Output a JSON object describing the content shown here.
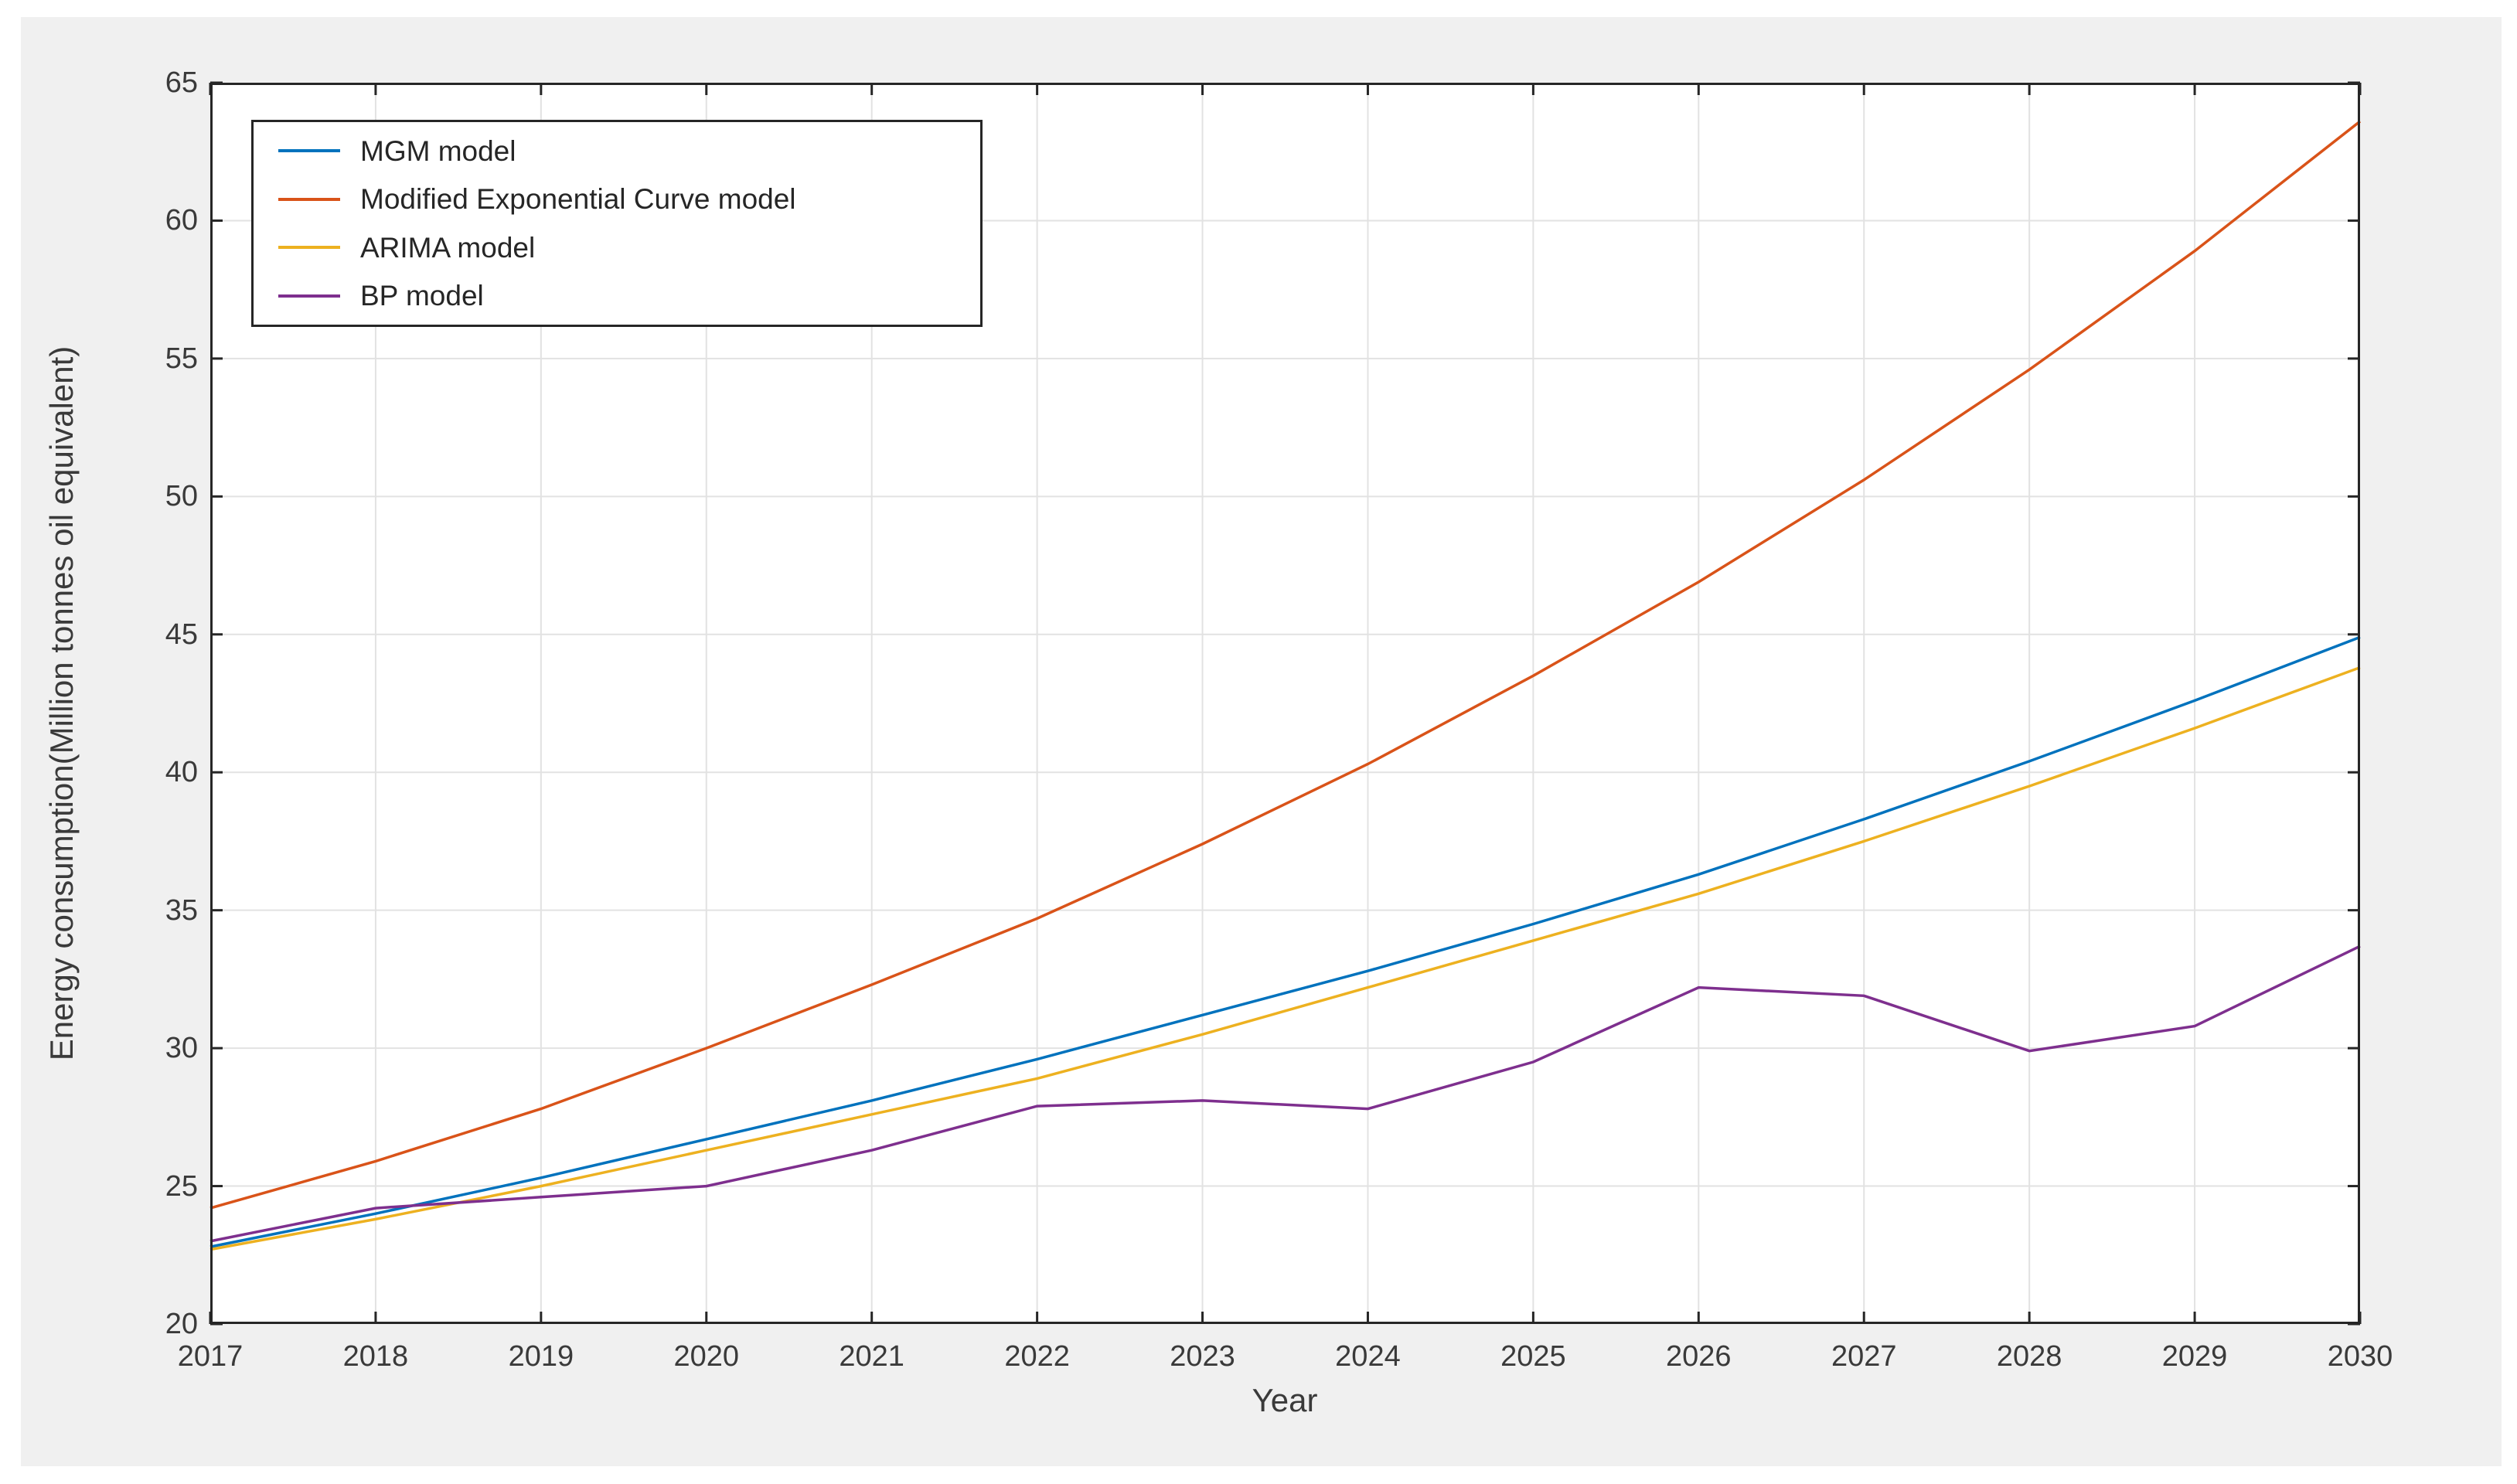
{
  "figure": {
    "background_color": "#F0F0F0",
    "plot_background_color": "#FFFFFF",
    "axis_color": "#262626",
    "grid_color": "#E2E2E2"
  },
  "chart_data": {
    "type": "line",
    "title": "",
    "xlabel": "Year",
    "ylabel": "Energy consumption(Million tonnes oil equivalent)",
    "xlim": [
      2017,
      2030
    ],
    "ylim": [
      20,
      65
    ],
    "xticks": [
      2017,
      2018,
      2019,
      2020,
      2021,
      2022,
      2023,
      2024,
      2025,
      2026,
      2027,
      2028,
      2029,
      2030
    ],
    "yticks": [
      20,
      25,
      30,
      35,
      40,
      45,
      50,
      55,
      60,
      65
    ],
    "grid": true,
    "legend_position": "top-left",
    "x": [
      2017,
      2018,
      2019,
      2020,
      2021,
      2022,
      2023,
      2024,
      2025,
      2026,
      2027,
      2028,
      2029,
      2030
    ],
    "series": [
      {
        "name": "MGM model",
        "color": "#0072BD",
        "values": [
          22.8,
          24.0,
          25.3,
          26.7,
          28.1,
          29.6,
          31.2,
          32.8,
          34.5,
          36.3,
          38.3,
          40.4,
          42.6,
          44.9
        ]
      },
      {
        "name": "Modified Exponential Curve model",
        "color": "#D95319",
        "values": [
          24.2,
          25.9,
          27.8,
          30.0,
          32.3,
          34.7,
          37.4,
          40.3,
          43.5,
          46.9,
          50.6,
          54.6,
          58.9,
          63.6
        ]
      },
      {
        "name": "ARIMA model",
        "color": "#EDB120",
        "values": [
          22.7,
          23.8,
          25.0,
          26.3,
          27.6,
          28.9,
          30.5,
          32.2,
          33.9,
          35.6,
          37.5,
          39.5,
          41.6,
          43.8
        ]
      },
      {
        "name": "BP model",
        "color": "#7E2F8E",
        "values": [
          23.0,
          24.2,
          24.6,
          25.0,
          26.3,
          27.9,
          28.1,
          27.8,
          29.5,
          32.2,
          31.9,
          29.9,
          30.8,
          33.7
        ]
      }
    ]
  }
}
